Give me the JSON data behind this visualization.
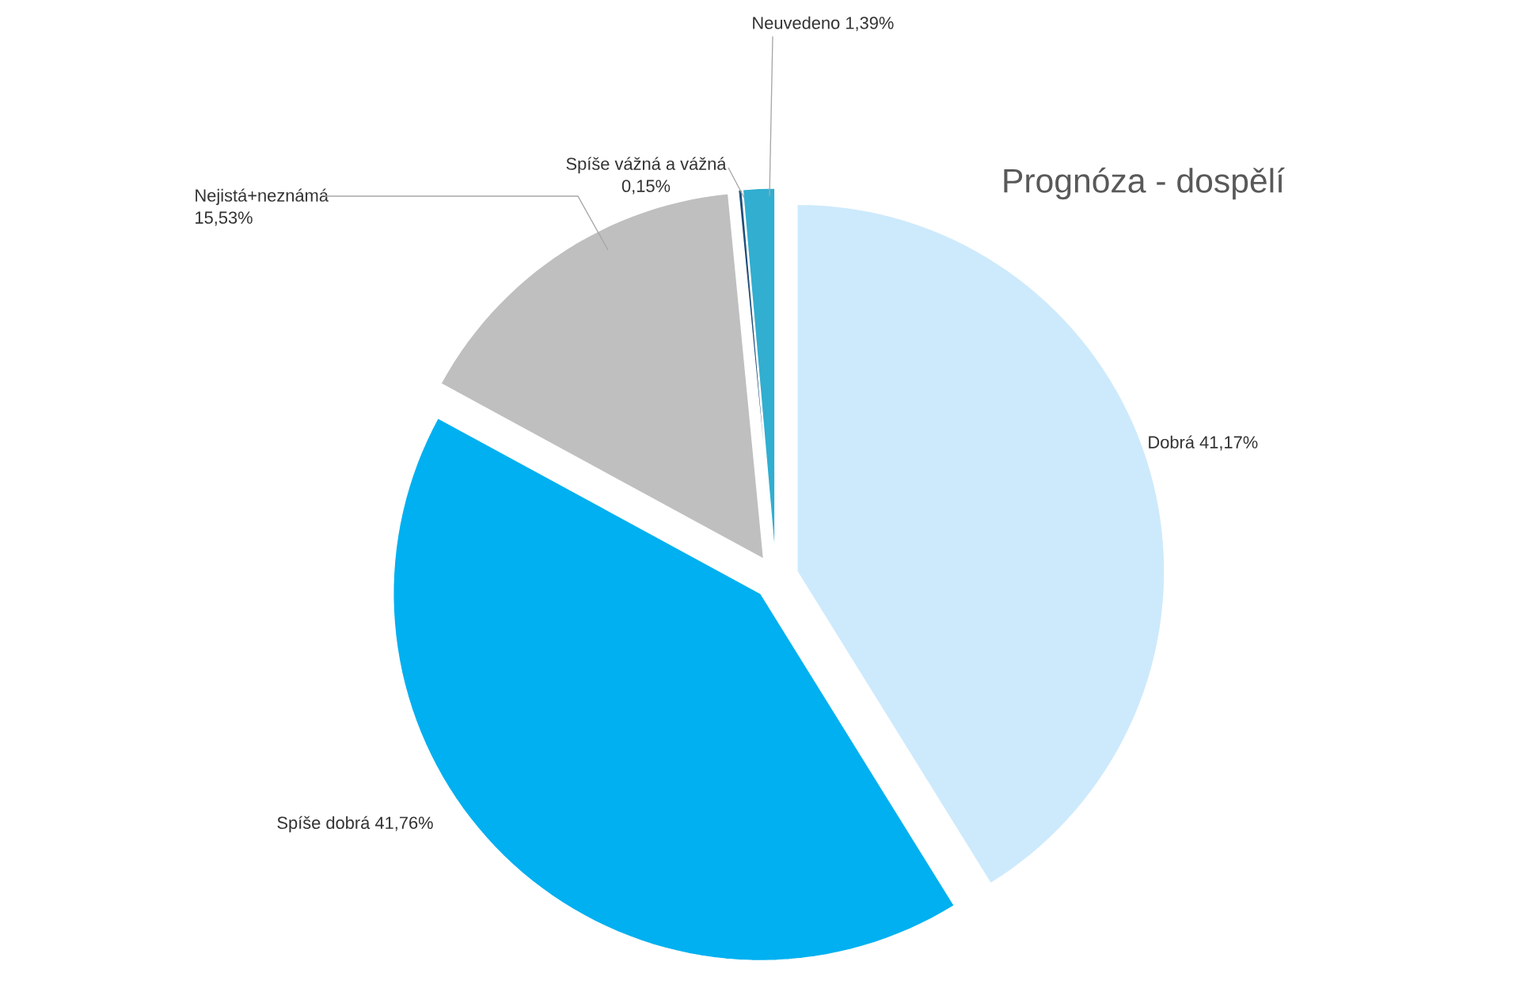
{
  "chart_data": {
    "type": "pie",
    "title": "Prognóza - dospělí",
    "categories": [
      "Dobrá",
      "Spíše dobrá",
      "Nejistá+neznámá",
      "Spíše vážná a vážná",
      "Neuvedeno"
    ],
    "values": [
      41.17,
      41.76,
      15.53,
      0.15,
      1.39
    ],
    "value_labels": [
      "41,17%",
      "41,76%",
      "15,53%",
      "0,15%",
      "1,39%"
    ],
    "colors": [
      "#cdeafc",
      "#00b0f0",
      "#bfbfbf",
      "#1f4e79",
      "#31aed0"
    ]
  }
}
